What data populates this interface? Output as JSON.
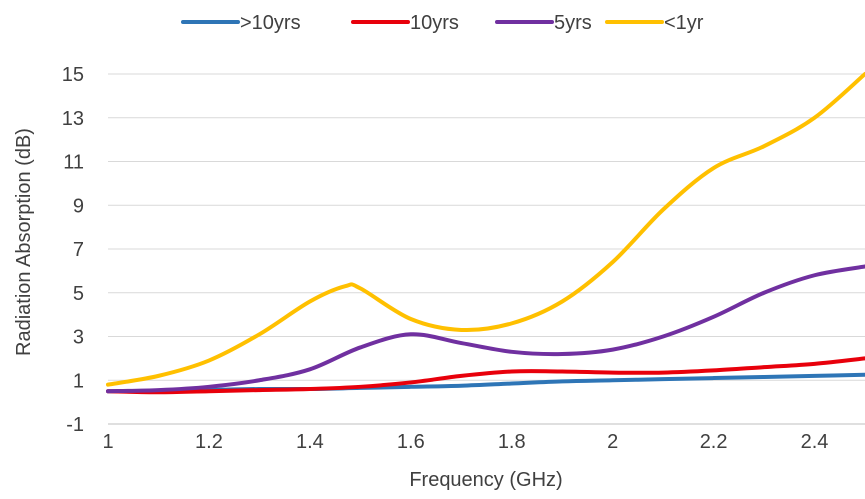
{
  "chart_data": {
    "type": "line",
    "title": "",
    "xlabel": "Frequency (GHz)",
    "ylabel": "Radiation Absorption (dB)",
    "xlim": [
      1,
      2.5
    ],
    "ylim": [
      -1,
      15
    ],
    "xticks": [
      "1",
      "1.2",
      "1.4",
      "1.6",
      "1.8",
      "2",
      "2.2",
      "2.4"
    ],
    "yticks": [
      "-1",
      "1",
      "3",
      "5",
      "7",
      "9",
      "11",
      "13",
      "15"
    ],
    "grid": "horizontal",
    "legend_position": "top",
    "series": [
      {
        "name": ">10yrs",
        "color": "#2E75B6",
        "x": [
          1.0,
          1.1,
          1.2,
          1.3,
          1.4,
          1.5,
          1.6,
          1.7,
          1.8,
          1.9,
          2.0,
          2.1,
          2.2,
          2.3,
          2.4,
          2.5
        ],
        "y": [
          0.5,
          0.5,
          0.55,
          0.6,
          0.6,
          0.65,
          0.7,
          0.75,
          0.85,
          0.95,
          1.0,
          1.05,
          1.1,
          1.15,
          1.2,
          1.25
        ]
      },
      {
        "name": "10yrs",
        "color": "#E8000B",
        "x": [
          1.0,
          1.1,
          1.2,
          1.3,
          1.4,
          1.5,
          1.6,
          1.7,
          1.8,
          1.9,
          2.0,
          2.1,
          2.2,
          2.3,
          2.4,
          2.5
        ],
        "y": [
          0.5,
          0.45,
          0.5,
          0.55,
          0.6,
          0.7,
          0.9,
          1.2,
          1.4,
          1.4,
          1.35,
          1.35,
          1.45,
          1.6,
          1.75,
          2.0
        ]
      },
      {
        "name": "5yrs",
        "color": "#7030A0",
        "x": [
          1.0,
          1.1,
          1.2,
          1.3,
          1.4,
          1.5,
          1.6,
          1.7,
          1.8,
          1.9,
          2.0,
          2.1,
          2.2,
          2.3,
          2.4,
          2.5
        ],
        "y": [
          0.5,
          0.55,
          0.7,
          1.0,
          1.5,
          2.5,
          3.1,
          2.7,
          2.3,
          2.2,
          2.4,
          3.0,
          3.9,
          5.0,
          5.8,
          6.2
        ]
      },
      {
        "name": "<1yr",
        "color": "#FFC000",
        "x": [
          1.0,
          1.1,
          1.2,
          1.3,
          1.4,
          1.47,
          1.5,
          1.6,
          1.7,
          1.8,
          1.9,
          2.0,
          2.1,
          2.2,
          2.3,
          2.4,
          2.5
        ],
        "y": [
          0.8,
          1.2,
          1.9,
          3.1,
          4.6,
          5.3,
          5.2,
          3.8,
          3.3,
          3.6,
          4.6,
          6.4,
          8.8,
          10.7,
          11.7,
          13.0,
          15.0
        ]
      }
    ]
  }
}
